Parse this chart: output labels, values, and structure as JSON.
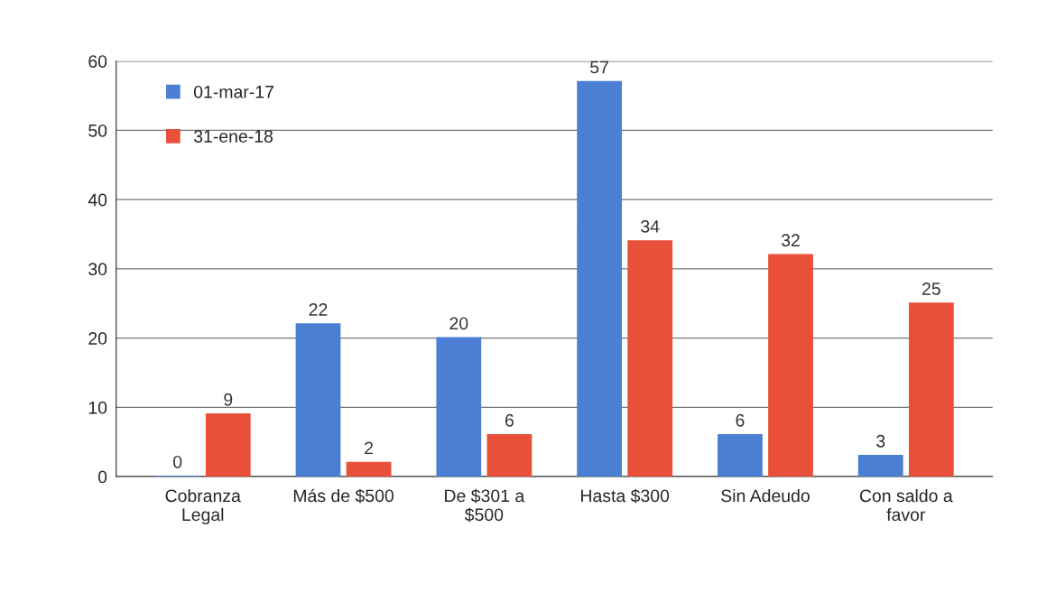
{
  "chart_data": {
    "type": "bar",
    "categories": [
      "Cobranza\nLegal",
      "Más de $500",
      "De $301 a\n$500",
      "Hasta $300",
      "Sin Adeudo",
      "Con saldo a\nfavor"
    ],
    "series": [
      {
        "name": "01-mar-17",
        "color": "#4a7fd4",
        "values": [
          0,
          22,
          20,
          57,
          6,
          3
        ]
      },
      {
        "name": "31-ene-18",
        "color": "#e8503a",
        "values": [
          9,
          2,
          6,
          34,
          32,
          25
        ]
      }
    ],
    "ylim": [
      0,
      60
    ],
    "yticks": [
      0,
      10,
      20,
      30,
      40,
      50,
      60
    ],
    "grid": "y",
    "legend": "top left",
    "data_labels": true
  }
}
